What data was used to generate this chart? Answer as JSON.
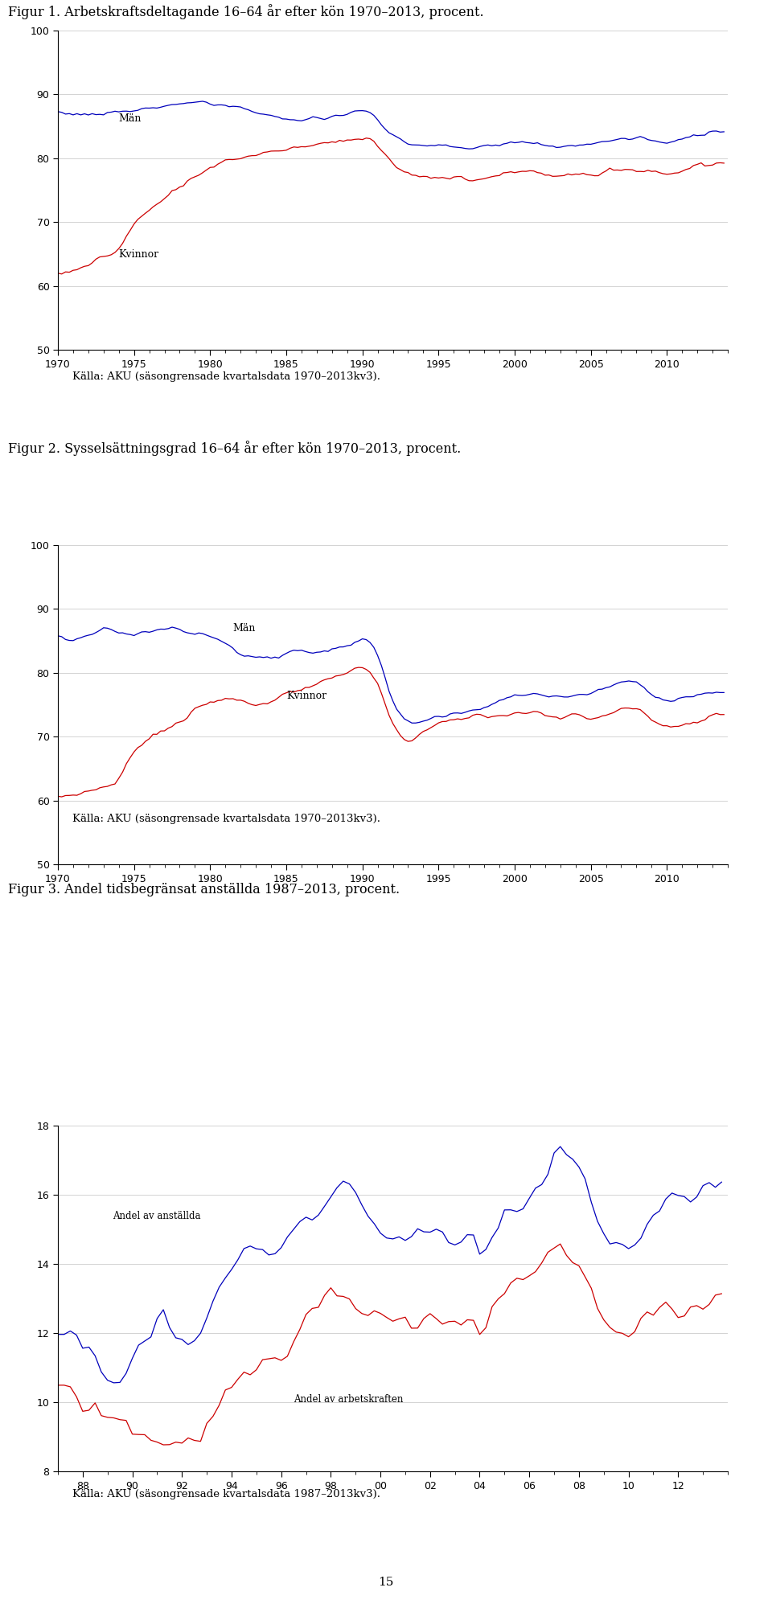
{
  "fig1_title": "Figur 1. Arbetskraftsdeltagande 16–64 år efter kön 1970–2013, procent.",
  "fig2_title": "Figur 2. Sysselsättningsgrad 16–64 år efter kön 1970–2013, procent.",
  "fig3_title": "Figur 3. Andel tidsbegränsat anställda 1987–2013, procent.",
  "source1": "Källa: AKU (säsongrensade kvartalsdata 1970–2013kv3).",
  "source2": "Källa: AKU (säsongrensade kvartalsdata 1970–2013kv3).",
  "source3": "Källa: AKU (säsongrensade kvartalsdata 1987–2013kv3).",
  "man_color": "#0000bb",
  "kvinnor_color": "#cc0000",
  "fig1_ylim": [
    50,
    100
  ],
  "fig1_yticks": [
    50,
    60,
    70,
    80,
    90,
    100
  ],
  "fig2_ylim": [
    50,
    100
  ],
  "fig2_yticks": [
    50,
    60,
    70,
    80,
    90,
    100
  ],
  "fig3_ylim": [
    8,
    18
  ],
  "fig3_yticks": [
    8,
    10,
    12,
    14,
    16,
    18
  ],
  "xticks1": [
    1970,
    1975,
    1980,
    1985,
    1990,
    1995,
    2000,
    2005,
    2010
  ],
  "xtick_labels1": [
    "1970",
    "1975",
    "1980",
    "1985",
    "1990",
    "1995",
    "2000",
    "2005",
    "2010"
  ],
  "xticks3": [
    1988,
    1990,
    1992,
    1994,
    1996,
    1998,
    2000,
    2002,
    2004,
    2006,
    2008,
    2010,
    2012
  ],
  "xtick_labels3": [
    "88",
    "90",
    "92",
    "94",
    "96",
    "98",
    "00",
    "02",
    "04",
    "06",
    "08",
    "10",
    "12"
  ],
  "page_number": "15"
}
